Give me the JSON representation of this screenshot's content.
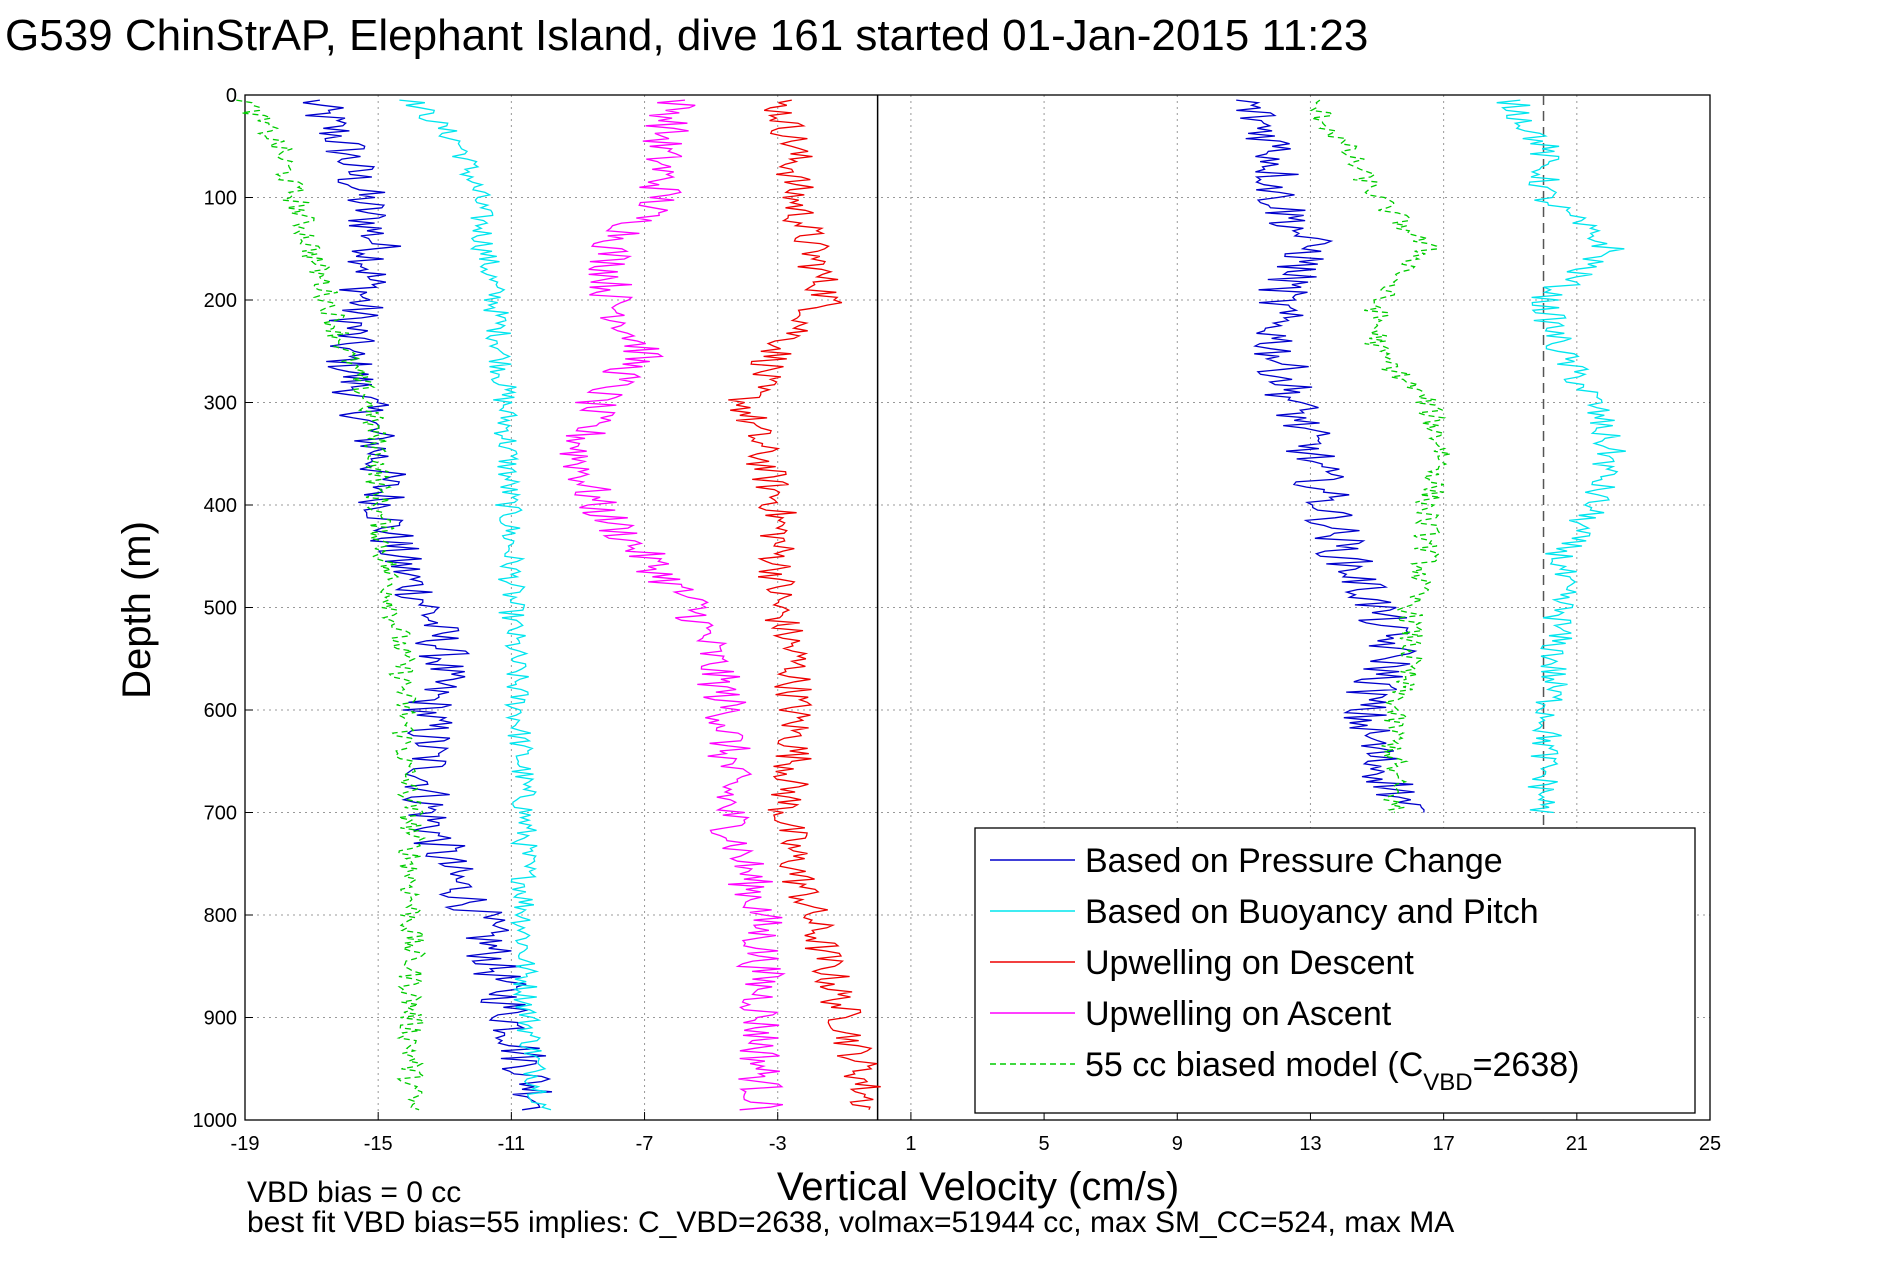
{
  "chart_data": {
    "type": "line",
    "title": "G539 ChinStrAP, Elephant Island, dive 161 started 01-Jan-2015 11:23",
    "xlabel": "Vertical Velocity (cm/s)",
    "ylabel": "Depth (m)",
    "xlim": [
      -19,
      25
    ],
    "ylim": [
      0,
      1000
    ],
    "y_reversed": true,
    "grid": "dotted",
    "xticks": [
      -19,
      -15,
      -11,
      -7,
      -3,
      1,
      5,
      9,
      13,
      17,
      21,
      25
    ],
    "yticks": [
      0,
      100,
      200,
      300,
      400,
      500,
      600,
      700,
      800,
      900,
      1000
    ],
    "xtick_labels": [
      "-19",
      "-15",
      "-11",
      "-7",
      "-3",
      "1",
      "5",
      "9",
      "13",
      "17",
      "21",
      "25"
    ],
    "ytick_labels": [
      "0",
      "100",
      "200",
      "300",
      "400",
      "500",
      "600",
      "700",
      "800",
      "900",
      "1000"
    ],
    "vertical_reference_lines": [
      {
        "x": 0,
        "style": "solid",
        "color": "#000000"
      },
      {
        "x": 20,
        "style": "dashed",
        "color": "#555555"
      }
    ],
    "legend_position": "bottom-right",
    "series": [
      {
        "name": "Based on Pressure Change",
        "color": "#0000cc",
        "style": "solid",
        "noise": 0.8,
        "depth": [
          5,
          50,
          100,
          150,
          200,
          250,
          300,
          350,
          400,
          450,
          500,
          550,
          600,
          650,
          700,
          750,
          800,
          850,
          900,
          950,
          990
        ],
        "velocity": [
          -17,
          -16,
          -15.5,
          -15,
          -15.5,
          -16,
          -15.5,
          -15,
          -14.8,
          -14.5,
          -13.5,
          -13,
          -13.5,
          -13.5,
          -13.5,
          -13,
          -12,
          -11.5,
          -11,
          -10.5,
          -10
        ]
      },
      {
        "name": "Based on Buoyancy and Pitch",
        "color": "#00e5ee",
        "style": "solid",
        "noise": 0.4,
        "depth": [
          5,
          50,
          100,
          150,
          200,
          250,
          300,
          350,
          400,
          450,
          500,
          550,
          600,
          650,
          700,
          750,
          800,
          850,
          900,
          950,
          990
        ],
        "velocity": [
          -14,
          -12.5,
          -12,
          -11.8,
          -11.5,
          -11.3,
          -11.2,
          -11.1,
          -11.1,
          -11,
          -11,
          -10.9,
          -10.8,
          -10.7,
          -10.6,
          -10.6,
          -10.6,
          -10.6,
          -10.5,
          -10.3,
          -10
        ]
      },
      {
        "name": "Upwelling on Descent",
        "color": "#ee0000",
        "style": "solid",
        "noise": 0.6,
        "depth": [
          5,
          50,
          100,
          150,
          200,
          250,
          300,
          350,
          400,
          450,
          500,
          550,
          600,
          650,
          700,
          750,
          800,
          850,
          900,
          950,
          990
        ],
        "velocity": [
          -3,
          -2.5,
          -2.5,
          -2,
          -1.5,
          -3,
          -4,
          -3.5,
          -3,
          -3,
          -3,
          -2.5,
          -2.5,
          -2.5,
          -2.8,
          -2.5,
          -2,
          -1.5,
          -1,
          -0.5,
          -0.3
        ]
      },
      {
        "name": "Upwelling on Ascent",
        "color": "#ff00ff",
        "style": "solid",
        "noise": 0.7,
        "depth": [
          5,
          50,
          100,
          150,
          200,
          250,
          300,
          350,
          400,
          450,
          500,
          550,
          600,
          650,
          700,
          750,
          800,
          850,
          900,
          950,
          990
        ],
        "velocity": [
          -6,
          -6.5,
          -6.5,
          -8,
          -8,
          -7,
          -8.5,
          -9,
          -8.5,
          -7,
          -5.5,
          -5,
          -4.5,
          -4.5,
          -4.5,
          -4,
          -3.5,
          -3.5,
          -3.5,
          -3.5,
          -3.5
        ]
      },
      {
        "name": "55 cc biased model (C",
        "name_sub": "VBD",
        "name_end": "=2638)",
        "color": "#00cc00",
        "style": "dashed",
        "noise": 0.4,
        "depth": [
          5,
          50,
          100,
          150,
          200,
          250,
          300,
          350,
          400,
          450,
          500,
          550,
          600,
          650,
          700,
          750,
          800,
          850,
          900,
          950,
          990
        ],
        "velocity": [
          -19,
          -18,
          -17.5,
          -17,
          -16.5,
          -16,
          -15.3,
          -15,
          -15,
          -14.8,
          -14.5,
          -14.3,
          -14.2,
          -14.2,
          -14,
          -14,
          -14,
          -14,
          -14,
          -14,
          -14
        ]
      },
      {
        "name": "",
        "legend": false,
        "color": "#0000cc",
        "style": "solid",
        "noise": 0.8,
        "depth": [
          5,
          50,
          100,
          150,
          200,
          250,
          300,
          350,
          400,
          450,
          500,
          550,
          600,
          650,
          700
        ],
        "velocity": [
          11,
          12,
          12,
          13,
          12,
          12,
          12.5,
          13,
          13.5,
          14,
          15,
          15.5,
          14.5,
          15,
          16
        ]
      },
      {
        "name": "",
        "legend": false,
        "color": "#00e5ee",
        "style": "solid",
        "noise": 0.5,
        "depth": [
          5,
          50,
          100,
          150,
          200,
          250,
          300,
          350,
          400,
          450,
          500,
          550,
          600,
          650,
          700
        ],
        "velocity": [
          19,
          20,
          20,
          22,
          20,
          20.5,
          21.5,
          22,
          21.5,
          20.5,
          20.5,
          20.3,
          20.2,
          20,
          20
        ]
      },
      {
        "name": "",
        "legend": false,
        "color": "#00cc00",
        "style": "dashed",
        "noise": 0.4,
        "depth": [
          5,
          50,
          100,
          150,
          200,
          250,
          300,
          350,
          400,
          450,
          500,
          550,
          600,
          650,
          700
        ],
        "velocity": [
          13,
          14,
          15,
          16.5,
          15,
          15,
          16.5,
          17,
          16.5,
          16.5,
          16,
          16,
          15.5,
          15.5,
          15.5
        ]
      }
    ]
  },
  "footer": {
    "vbd_bias": "VBD bias = 0 cc",
    "best_fit": "best fit VBD bias=55 implies: C_VBD=2638, volmax=51944 cc, max SM_CC=524, max MA"
  }
}
